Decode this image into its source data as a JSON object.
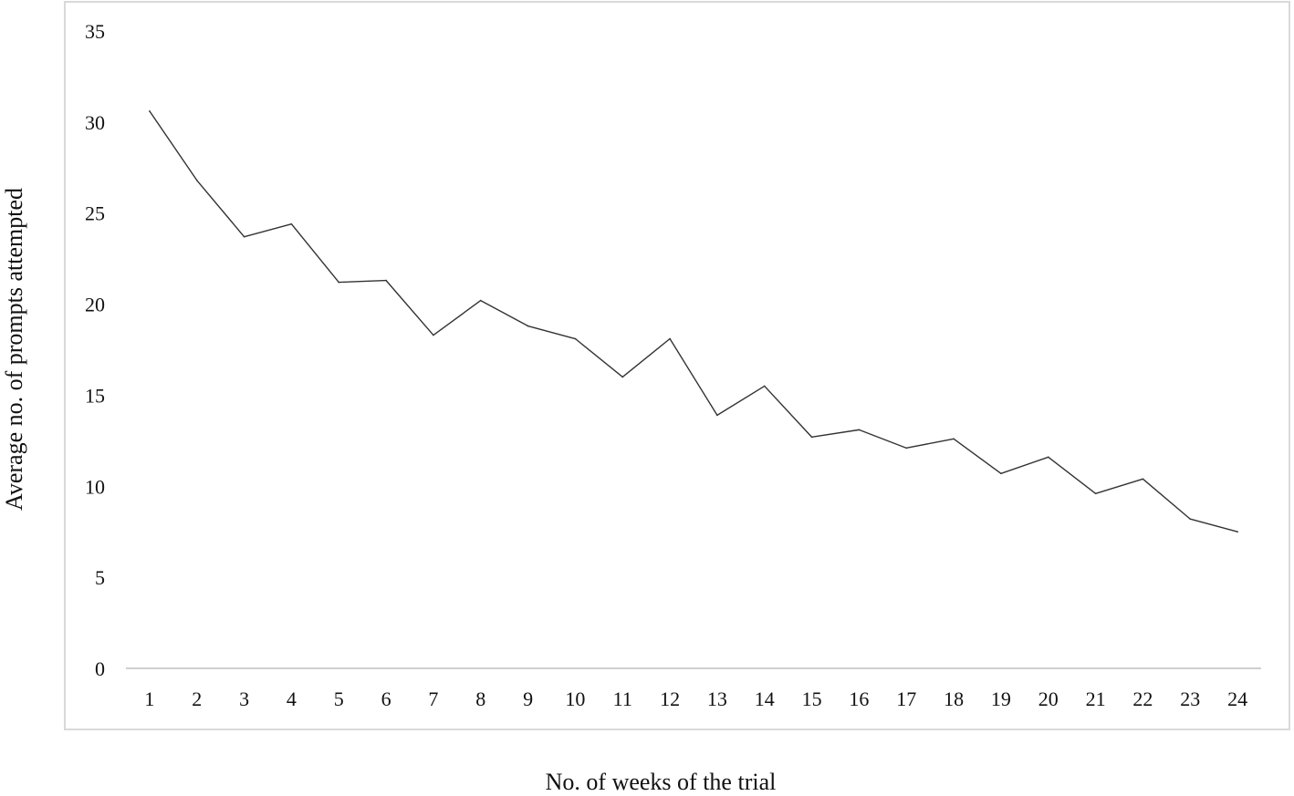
{
  "chart_data": {
    "type": "line",
    "title": "",
    "xlabel": "No. of weeks of the trial",
    "ylabel": "Average no. of prompts attempted",
    "categories": [
      "1",
      "2",
      "3",
      "4",
      "5",
      "6",
      "7",
      "8",
      "9",
      "10",
      "11",
      "12",
      "13",
      "14",
      "15",
      "16",
      "17",
      "18",
      "19",
      "20",
      "21",
      "22",
      "23",
      "24"
    ],
    "series": [
      {
        "name": "Average prompts attempted",
        "values": [
          30.6,
          26.8,
          23.7,
          24.4,
          21.2,
          21.3,
          18.3,
          20.2,
          18.8,
          18.1,
          16.0,
          18.1,
          13.9,
          15.5,
          12.7,
          13.1,
          12.1,
          12.6,
          10.7,
          11.6,
          9.6,
          10.4,
          8.2,
          7.5
        ]
      }
    ],
    "ylim": [
      0,
      35
    ],
    "yticks": [
      "0",
      "5",
      "10",
      "15",
      "20",
      "25",
      "30",
      "35"
    ],
    "grid": false,
    "legend": "none",
    "colors": {
      "line": "#333333",
      "axis": "#bfbfbf",
      "frame": "#d9d9d9"
    }
  }
}
